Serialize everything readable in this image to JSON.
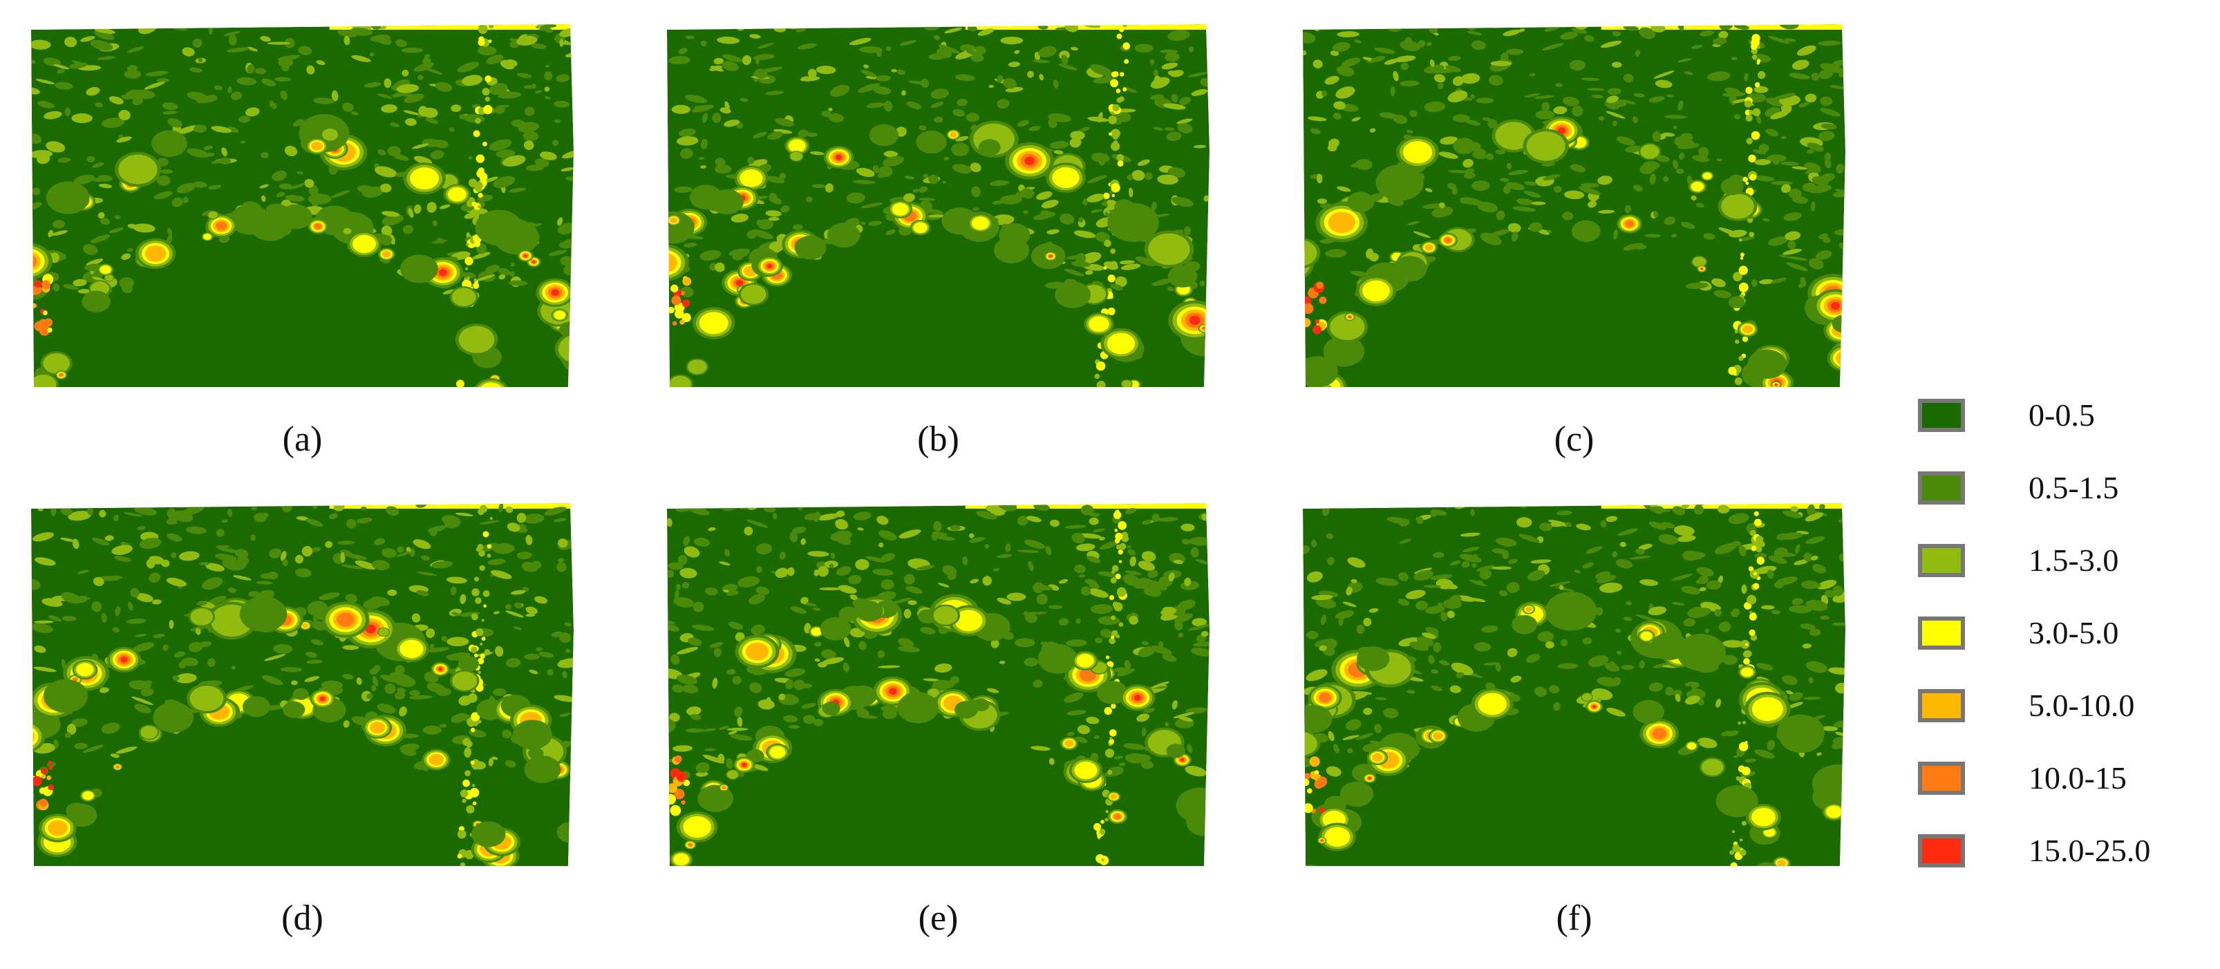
{
  "panels": [
    {
      "label": "(a)"
    },
    {
      "label": "(b)"
    },
    {
      "label": "(c)"
    },
    {
      "label": "(d)"
    },
    {
      "label": "(e)"
    },
    {
      "label": "(f)"
    }
  ],
  "legend": [
    {
      "label": "0-0.5",
      "color": "#1b6a00"
    },
    {
      "label": "0.5-1.5",
      "color": "#4a8a08"
    },
    {
      "label": "1.5-3.0",
      "color": "#92bb10"
    },
    {
      "label": "3.0-5.0",
      "color": "#ffff00"
    },
    {
      "label": "5.0-10.0",
      "color": "#ffb800"
    },
    {
      "label": "10.0-15",
      "color": "#ff7a10"
    },
    {
      "label": "15.0-25.0",
      "color": "#ff2a10"
    }
  ]
}
